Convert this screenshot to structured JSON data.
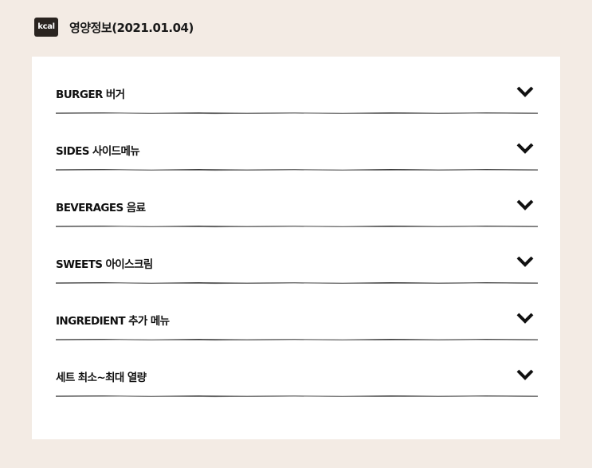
{
  "header": {
    "badge": "kcal",
    "title": "영양정보(2021.01.04)"
  },
  "accordion": {
    "items": [
      {
        "label": "BURGER 버거",
        "icon": "chevron-down-icon"
      },
      {
        "label": "SIDES 사이드메뉴",
        "icon": "chevron-down-icon"
      },
      {
        "label": "BEVERAGES 음료",
        "icon": "chevron-down-icon"
      },
      {
        "label": "SWEETS 아이스크림",
        "icon": "chevron-down-icon"
      },
      {
        "label": "INGREDIENT 추가 메뉴",
        "icon": "chevron-down-icon"
      },
      {
        "label": "세트 최소~최대 열량",
        "icon": "chevron-down-icon"
      }
    ]
  },
  "colors": {
    "background": "#f3ebe4",
    "panel": "#ffffff",
    "badge": "#2a2420",
    "text": "#111111"
  }
}
